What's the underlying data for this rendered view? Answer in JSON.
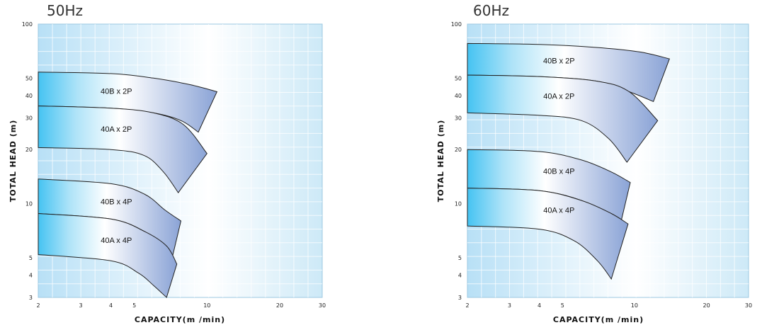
{
  "chart_data": [
    {
      "type": "area",
      "title": "50Hz",
      "xlabel": "CAPACITY(m /min)",
      "ylabel": "TOTAL HEAD (m)",
      "xscale": "log",
      "yscale": "log",
      "xlim": [
        2,
        30
      ],
      "ylim": [
        3,
        100
      ],
      "xticks": [
        2,
        3,
        4,
        5,
        10,
        20,
        30
      ],
      "yticks": [
        3,
        4,
        5,
        10,
        20,
        30,
        40,
        50,
        100
      ],
      "grid": true,
      "series": [
        {
          "name": "40B x 2P",
          "upper": [
            [
              2,
              54
            ],
            [
              4,
              53
            ],
            [
              6,
              50
            ],
            [
              8.5,
              46
            ],
            [
              11,
              42
            ]
          ],
          "lower": [
            [
              2,
              35
            ],
            [
              4,
              34
            ],
            [
              6,
              32
            ],
            [
              7.8,
              29
            ],
            [
              9.2,
              25
            ]
          ]
        },
        {
          "name": "40A x 2P",
          "upper": [
            [
              2,
              35
            ],
            [
              4,
              34
            ],
            [
              6,
              32
            ],
            [
              8,
              27.5
            ],
            [
              10,
              19
            ]
          ],
          "lower": [
            [
              2,
              20.5
            ],
            [
              4,
              20
            ],
            [
              5.5,
              18.5
            ],
            [
              6.6,
              15
            ],
            [
              7.6,
              11.5
            ]
          ]
        },
        {
          "name": "40B x 4P",
          "upper": [
            [
              2,
              13.7
            ],
            [
              4,
              12.9
            ],
            [
              5.5,
              11.3
            ],
            [
              6.7,
              9.2
            ],
            [
              7.8,
              8
            ]
          ],
          "lower": [
            [
              2,
              8.8
            ],
            [
              4,
              8.2
            ],
            [
              5.5,
              7
            ],
            [
              6.5,
              5.8
            ],
            [
              7.2,
              5.1
            ]
          ]
        },
        {
          "name": "40A x 4P",
          "upper": [
            [
              2,
              8.8
            ],
            [
              4,
              8.2
            ],
            [
              5.5,
              7
            ],
            [
              6.8,
              5.8
            ],
            [
              7.5,
              4.6
            ]
          ],
          "lower": [
            [
              2,
              5.2
            ],
            [
              4,
              4.8
            ],
            [
              5.2,
              4.1
            ],
            [
              6,
              3.5
            ],
            [
              6.8,
              3
            ]
          ]
        }
      ]
    },
    {
      "type": "area",
      "title": "60Hz",
      "xlabel": "CAPACITY(m /min)",
      "ylabel": "TOTAL HEAD (m)",
      "xscale": "log",
      "yscale": "log",
      "xlim": [
        2,
        30
      ],
      "ylim": [
        3,
        100
      ],
      "xticks": [
        2,
        3,
        4,
        5,
        10,
        20,
        30
      ],
      "yticks": [
        3,
        4,
        5,
        10,
        20,
        30,
        40,
        50,
        100
      ],
      "grid": true,
      "series": [
        {
          "name": "40B x 2P",
          "upper": [
            [
              2,
              78
            ],
            [
              4,
              77
            ],
            [
              7,
              74
            ],
            [
              10.5,
              70
            ],
            [
              14,
              64
            ]
          ],
          "lower": [
            [
              2,
              52
            ],
            [
              4,
              51
            ],
            [
              7,
              48
            ],
            [
              9.5,
              42
            ],
            [
              12,
              37
            ]
          ]
        },
        {
          "name": "40A x 2P",
          "upper": [
            [
              2,
              52
            ],
            [
              4,
              51
            ],
            [
              7,
              48
            ],
            [
              9.5,
              42
            ],
            [
              12.5,
              29
            ]
          ],
          "lower": [
            [
              2,
              32
            ],
            [
              4,
              31
            ],
            [
              6,
              29
            ],
            [
              7.8,
              23
            ],
            [
              9.3,
              17
            ]
          ]
        },
        {
          "name": "40B x 4P",
          "upper": [
            [
              2,
              20
            ],
            [
              4,
              19.5
            ],
            [
              6,
              17.5
            ],
            [
              8,
              15
            ],
            [
              9.6,
              13.1
            ]
          ],
          "lower": [
            [
              2,
              12.2
            ],
            [
              4,
              11.8
            ],
            [
              6,
              10.4
            ],
            [
              7.5,
              8.8
            ],
            [
              8.7,
              7.5
            ]
          ]
        },
        {
          "name": "40A x 4P",
          "upper": [
            [
              2,
              12.2
            ],
            [
              4,
              11.8
            ],
            [
              6,
              10.4
            ],
            [
              8,
              8.8
            ],
            [
              9.4,
              7.7
            ]
          ],
          "lower": [
            [
              2,
              7.5
            ],
            [
              4,
              7.2
            ],
            [
              5.6,
              6.2
            ],
            [
              7,
              4.8
            ],
            [
              8,
              3.8
            ]
          ]
        }
      ]
    }
  ]
}
